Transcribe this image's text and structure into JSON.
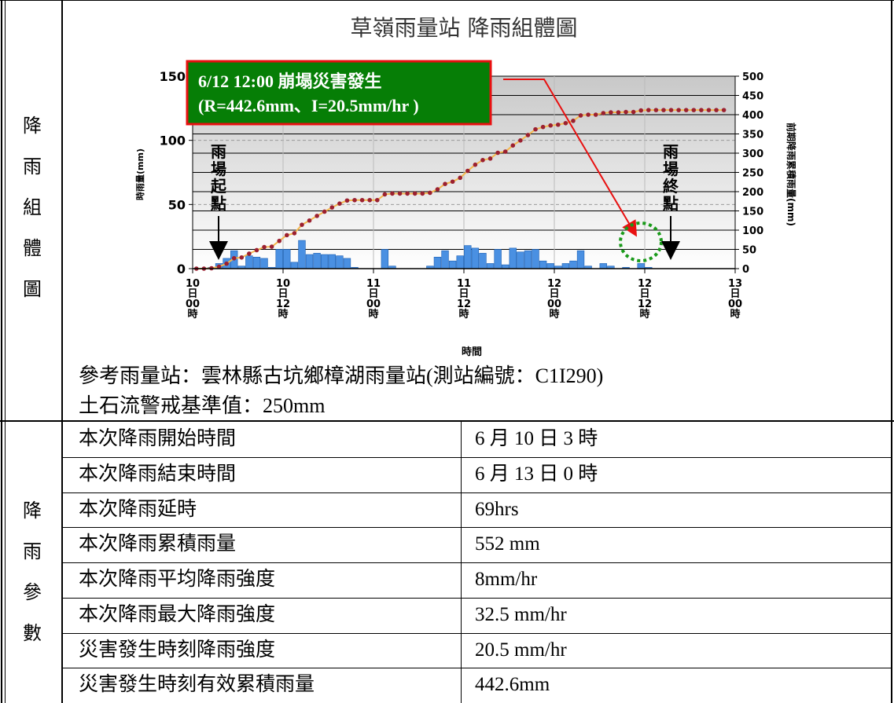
{
  "side_labels": {
    "chart_section": "降雨組體圖",
    "params_section": "降雨參數"
  },
  "reference": {
    "station": "參考雨量站：雲林縣古坑鄉樟湖雨量站(測站編號：C1I290)",
    "threshold": "土石流警戒基準值：250mm"
  },
  "params": [
    {
      "label": "本次降雨開始時間",
      "value": "6 月  10 日  3 時"
    },
    {
      "label": "本次降雨結束時間",
      "value": "6 月  13 日  0 時"
    },
    {
      "label": "本次降雨延時",
      "value": "69hrs"
    },
    {
      "label": "本次降雨累積雨量",
      "value": "552 mm"
    },
    {
      "label": "本次降雨平均降雨強度",
      "value": "8mm/hr"
    },
    {
      "label": "本次降雨最大降雨強度",
      "value": "32.5 mm/hr"
    },
    {
      "label": "災害發生時刻降雨強度",
      "value": "20.5 mm/hr"
    },
    {
      "label": "災害發生時刻有效累積雨量",
      "value": "442.6mm"
    }
  ],
  "chart_data": {
    "type": "bar",
    "title": "草嶺雨量站 降雨組體圖",
    "xlabel": "時間",
    "ylabel": "時雨量(mm)",
    "y2label": "前期降雨累積雨量(mm)",
    "ylim": [
      0,
      150
    ],
    "y2lim": [
      0,
      500
    ],
    "yticks": [
      "0",
      "50",
      "100",
      "150"
    ],
    "y2ticks": [
      "0",
      "50",
      "100",
      "150",
      "200",
      "250",
      "300",
      "350",
      "400",
      "450",
      "500"
    ],
    "xtick_labels": [
      [
        "10",
        "日",
        "00",
        "時"
      ],
      [
        "10",
        "日",
        "12",
        "時"
      ],
      [
        "11",
        "日",
        "00",
        "時"
      ],
      [
        "11",
        "日",
        "12",
        "時"
      ],
      [
        "12",
        "日",
        "00",
        "時"
      ],
      [
        "12",
        "日",
        "12",
        "時"
      ],
      [
        "13",
        "日",
        "00",
        "時"
      ]
    ],
    "grid": true,
    "series": [
      {
        "type": "bar",
        "color": "#4a90e2",
        "values": [
          0,
          0,
          1,
          4,
          8,
          14,
          2,
          10,
          9,
          8,
          1,
          15,
          15,
          5,
          22,
          11,
          12,
          11,
          11,
          10,
          8,
          1,
          0,
          0,
          0,
          15,
          2,
          0,
          0,
          0,
          0,
          2,
          9,
          14,
          6,
          10,
          18,
          16,
          12,
          4,
          15,
          3,
          16,
          13,
          14,
          15,
          6,
          4,
          2,
          4,
          6,
          14,
          2,
          0,
          4,
          2,
          0,
          1,
          0,
          4,
          1,
          0,
          0,
          0,
          0,
          0,
          0,
          0,
          0,
          0,
          0
        ]
      },
      {
        "type": "line",
        "color": "#f5b84d",
        "marker_color": "#9b2030",
        "values": [
          0,
          0,
          1,
          5,
          13,
          27,
          29,
          39,
          48,
          56,
          57,
          72,
          87,
          92,
          114,
          125,
          137,
          148,
          159,
          169,
          177,
          178,
          178,
          178,
          178,
          193,
          195,
          195,
          195,
          195,
          195,
          197,
          206,
          220,
          226,
          236,
          254,
          270,
          282,
          286,
          301,
          304,
          320,
          333,
          347,
          362,
          368,
          372,
          374,
          378,
          384,
          398,
          400,
          400,
          404,
          406,
          406,
          407,
          407,
          411,
          412,
          412,
          412,
          412,
          412,
          412,
          412,
          412,
          412,
          412,
          412
        ]
      }
    ],
    "annotations": {
      "event_box": [
        "6/12 12:00  崩塌災害發生",
        "(R=442.6mm、I=20.5mm/hr )"
      ],
      "start_label": [
        "雨",
        "場",
        "起",
        "點"
      ],
      "end_label": [
        "雨",
        "場",
        "終",
        "點"
      ]
    }
  }
}
